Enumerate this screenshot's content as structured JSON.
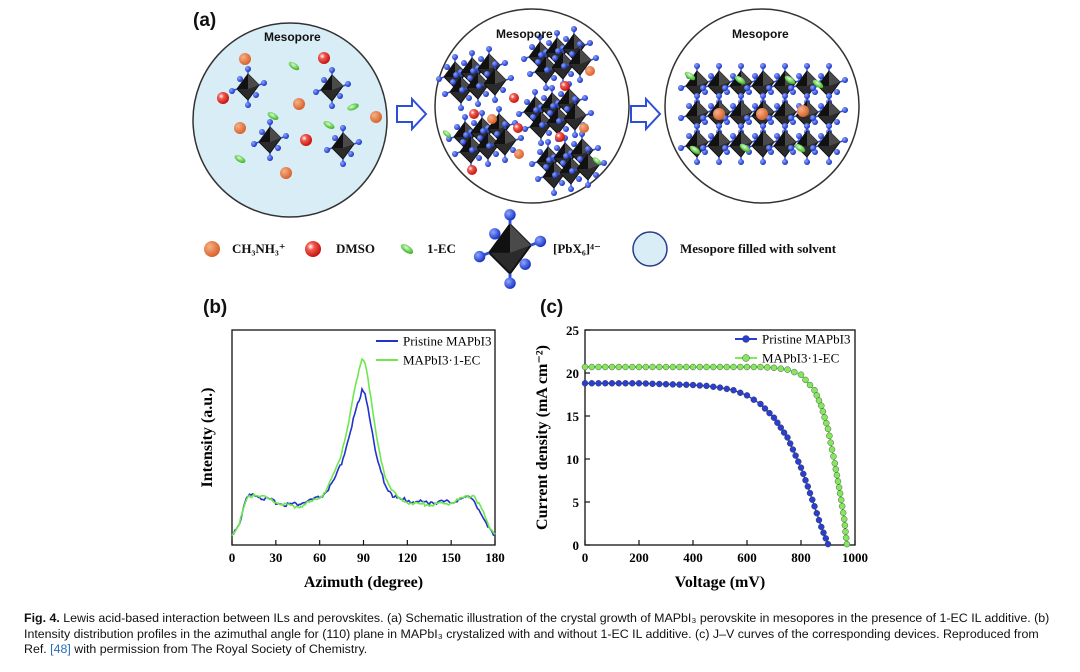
{
  "panel_a": {
    "label": "(a)",
    "circle_titles": [
      "Mesopore",
      "Mesopore",
      "Mesopore"
    ],
    "legend": {
      "ch3nh3": "CH₃NH₃⁺",
      "dmso": "DMSO",
      "ec": "1-EC",
      "pbx6": "[PbX₆]⁴⁻",
      "mesopore": "Mesopore filled with solvent"
    },
    "colors": {
      "ch3nh3": "#e07a3a",
      "dmso": "#e02a24",
      "ec": "#5ccf3a",
      "octahedron": "#1e1e1e",
      "ligand": "#2b4fd8",
      "mesopore_fill": "#d9edf6"
    }
  },
  "panel_b": {
    "label": "(b)"
  },
  "panel_c": {
    "label": "(c)"
  },
  "chart_data": [
    {
      "type": "line",
      "panel": "b",
      "xlabel": "Azimuth (degree)",
      "ylabel": "Intensity (a.u.)",
      "xlim": [
        0,
        180
      ],
      "xticks": [
        0,
        30,
        60,
        90,
        120,
        150,
        180
      ],
      "yticks_shown": false,
      "legend_position": "top-right",
      "series": [
        {
          "name": "Pristine MAPbI3",
          "color": "#2233cc",
          "x": [
            0,
            5,
            10,
            15,
            20,
            25,
            30,
            35,
            40,
            45,
            50,
            55,
            60,
            65,
            70,
            75,
            80,
            84,
            87,
            89,
            91,
            93,
            96,
            100,
            105,
            110,
            115,
            120,
            125,
            130,
            135,
            140,
            145,
            150,
            155,
            160,
            165,
            170,
            175,
            180
          ],
          "y": [
            0.05,
            0.1,
            0.22,
            0.24,
            0.22,
            0.21,
            0.2,
            0.19,
            0.19,
            0.19,
            0.2,
            0.21,
            0.22,
            0.25,
            0.3,
            0.38,
            0.5,
            0.61,
            0.68,
            0.72,
            0.7,
            0.64,
            0.52,
            0.38,
            0.28,
            0.23,
            0.21,
            0.21,
            0.2,
            0.2,
            0.2,
            0.2,
            0.2,
            0.2,
            0.21,
            0.22,
            0.22,
            0.15,
            0.08,
            0.05
          ]
        },
        {
          "name": "MAPbI3·1-EC",
          "color": "#6ee84a",
          "x": [
            0,
            5,
            10,
            15,
            20,
            25,
            30,
            35,
            40,
            45,
            50,
            55,
            60,
            65,
            70,
            75,
            80,
            84,
            87,
            89,
            91,
            93,
            96,
            100,
            105,
            110,
            115,
            120,
            125,
            130,
            135,
            140,
            145,
            150,
            155,
            160,
            165,
            170,
            175,
            180
          ],
          "y": [
            0.05,
            0.1,
            0.21,
            0.24,
            0.23,
            0.21,
            0.2,
            0.19,
            0.18,
            0.18,
            0.19,
            0.2,
            0.22,
            0.26,
            0.33,
            0.43,
            0.58,
            0.72,
            0.81,
            0.86,
            0.84,
            0.78,
            0.64,
            0.46,
            0.32,
            0.25,
            0.21,
            0.2,
            0.19,
            0.19,
            0.19,
            0.19,
            0.19,
            0.2,
            0.21,
            0.22,
            0.24,
            0.18,
            0.1,
            0.05
          ]
        }
      ]
    },
    {
      "type": "line",
      "panel": "c",
      "xlabel": "Voltage (mV)",
      "ylabel": "Current density (mA cm⁻²)",
      "xlim": [
        0,
        1000
      ],
      "ylim": [
        0,
        25
      ],
      "xticks": [
        0,
        200,
        400,
        600,
        800,
        1000
      ],
      "yticks": [
        0,
        5,
        10,
        15,
        20,
        25
      ],
      "legend_position": "top-right",
      "series": [
        {
          "name": "Pristine MAPbI3",
          "color": "#2a3fd0",
          "marker": "circle",
          "x": [
            0,
            100,
            200,
            300,
            400,
            450,
            500,
            550,
            600,
            650,
            700,
            750,
            800,
            825,
            850,
            875,
            900
          ],
          "y": [
            18.8,
            18.8,
            18.8,
            18.7,
            18.6,
            18.5,
            18.3,
            18.0,
            17.4,
            16.4,
            14.8,
            12.5,
            9.0,
            6.8,
            4.5,
            2.1,
            0.1
          ]
        },
        {
          "name": "MAPbI3·1-EC",
          "color": "#84e85c",
          "marker": "circle",
          "x": [
            0,
            100,
            200,
            300,
            400,
            500,
            600,
            650,
            700,
            750,
            800,
            850,
            875,
            900,
            925,
            945,
            960,
            970
          ],
          "y": [
            20.7,
            20.7,
            20.7,
            20.7,
            20.7,
            20.7,
            20.7,
            20.7,
            20.6,
            20.4,
            19.8,
            18.0,
            16.2,
            13.5,
            9.5,
            6.0,
            3.0,
            0.1
          ]
        }
      ]
    }
  ],
  "caption": {
    "fig_num": "Fig. 4.",
    "text_1": " Lewis acid-based interaction between ILs and perovskites. (a) Schematic illustration of the crystal growth of MAPbI₃ perovskite in mesopores in the presence of 1-EC IL additive. (b) Intensity distribution profiles in the azimuthal angle for (110) plane in MAPbI₃ crystalized with and without 1-EC IL additive. (c) J–V curves of the corresponding devices. Reproduced from Ref. ",
    "ref": "[48]",
    "text_2": " with permission from The Royal Society of Chemistry."
  }
}
